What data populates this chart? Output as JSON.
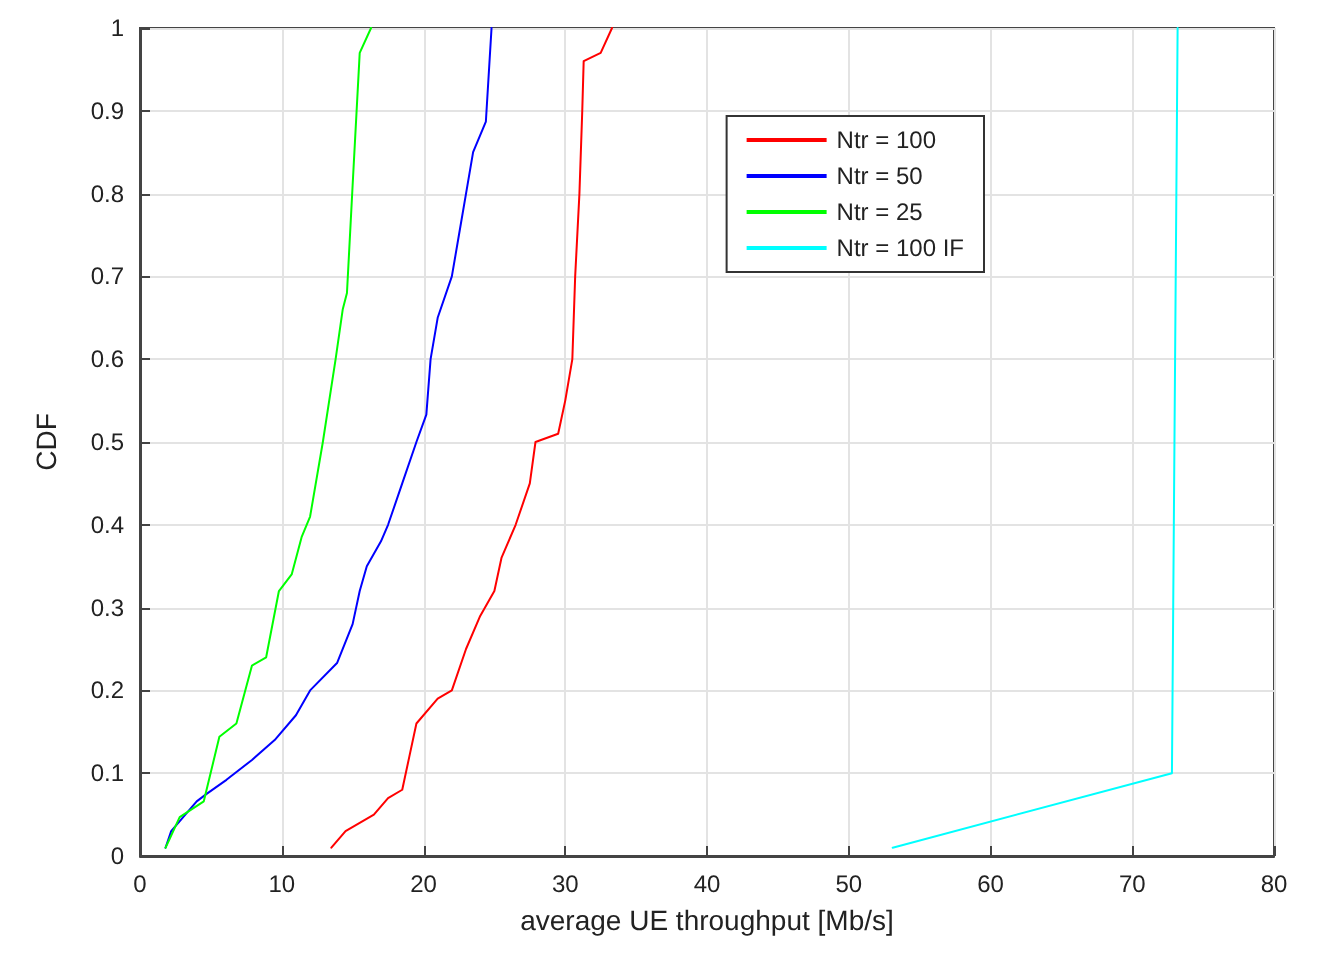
{
  "chart_data": {
    "type": "line",
    "xlabel": "average UE throughput [Mb/s]",
    "ylabel": "CDF",
    "xlim": [
      0,
      80
    ],
    "xticks": [
      0,
      10,
      20,
      30,
      40,
      50,
      60,
      70,
      80
    ],
    "ylim": [
      0,
      1
    ],
    "yticks": [
      0,
      0.1,
      0.2,
      0.3,
      0.4,
      0.5,
      0.6,
      0.7,
      0.8,
      0.9,
      1
    ],
    "grid": true,
    "legend": "top right",
    "marker": "none",
    "line_style": "solid",
    "series": [
      {
        "name": "Ntr = 100",
        "color": "#ff0000",
        "x": [
          13.5,
          14.5,
          16.5,
          17.5,
          18.5,
          19,
          19.5,
          21,
          22,
          23,
          24,
          25,
          25.5,
          26.5,
          27.5,
          27.9,
          29.5,
          30,
          30.5,
          30.7,
          31,
          31.2,
          31.3,
          32.5,
          33.3
        ],
        "values": [
          0.01,
          0.03,
          0.05,
          0.07,
          0.08,
          0.12,
          0.16,
          0.19,
          0.2,
          0.25,
          0.29,
          0.32,
          0.36,
          0.4,
          0.45,
          0.5,
          0.51,
          0.55,
          0.6,
          0.7,
          0.8,
          0.9,
          0.96,
          0.97,
          1
        ]
      },
      {
        "name": "Ntr = 50",
        "color": "#0000ff",
        "x": [
          1.8,
          2.2,
          4,
          4.7,
          6.1,
          7.9,
          9.5,
          11,
          12,
          13.9,
          15,
          15.5,
          16,
          17,
          17.5,
          18.5,
          19.5,
          20.2,
          20.5,
          21,
          22,
          22.5,
          23,
          23.5,
          24.4,
          24.8
        ],
        "values": [
          0.01,
          0.03,
          0.066,
          0.075,
          0.092,
          0.116,
          0.14,
          0.17,
          0.2,
          0.233,
          0.28,
          0.32,
          0.35,
          0.38,
          0.4,
          0.45,
          0.5,
          0.533,
          0.6,
          0.65,
          0.7,
          0.75,
          0.8,
          0.85,
          0.887,
          1
        ]
      },
      {
        "name": "Ntr = 25",
        "color": "#00ff00",
        "x": [
          1.8,
          2.8,
          4.5,
          5.6,
          6.8,
          7.9,
          8.9,
          9.8,
          10.7,
          11.4,
          12,
          12.9,
          13.8,
          14.3,
          14.6,
          15,
          15.5,
          16.3
        ],
        "values": [
          0.01,
          0.047,
          0.066,
          0.144,
          0.16,
          0.23,
          0.24,
          0.32,
          0.34,
          0.385,
          0.41,
          0.5,
          0.6,
          0.66,
          0.68,
          0.81,
          0.97,
          1
        ]
      },
      {
        "name": "Ntr = 100 IF",
        "color": "#00ffff",
        "x": [
          53.1,
          72.8,
          73.2
        ],
        "values": [
          0.01,
          0.1,
          1
        ]
      }
    ]
  }
}
